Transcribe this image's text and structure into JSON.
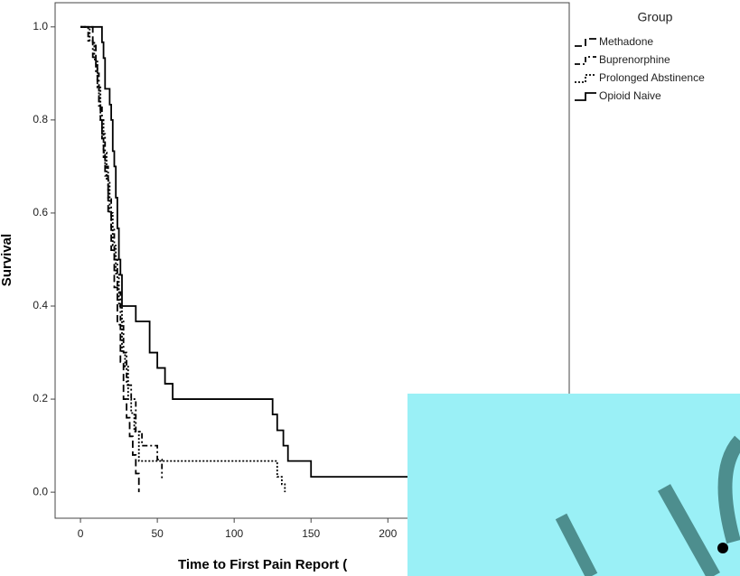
{
  "chart_data": {
    "type": "step",
    "x_label": "Time to First Pain Report (",
    "y_label": "Survival",
    "legend_title": "Group",
    "xlim": [
      -16.5,
      318
    ],
    "ylim": [
      -0.056,
      1.052
    ],
    "xticks": [
      0,
      50,
      100,
      150,
      200
    ],
    "yticks": [
      {
        "value": 0,
        "label": "0.0"
      },
      0.2,
      0.4,
      0.6,
      0.8,
      {
        "value": 1,
        "label": "1.0"
      }
    ],
    "series": [
      {
        "name": "Methadone",
        "color": "#000000",
        "dash": "8,4",
        "x": [
          0,
          8,
          10,
          11,
          12,
          13,
          14,
          15,
          16,
          18,
          20,
          22,
          24,
          26,
          28,
          30,
          32,
          34,
          36,
          38
        ],
        "values": [
          1,
          0.96,
          0.92,
          0.88,
          0.84,
          0.8,
          0.76,
          0.72,
          0.68,
          0.6,
          0.52,
          0.44,
          0.36,
          0.28,
          0.2,
          0.16,
          0.12,
          0.08,
          0.04,
          0
        ]
      },
      {
        "name": "Buprenorphine",
        "color": "#000000",
        "dash": "6,3,2,3",
        "x": [
          0,
          5,
          8,
          10,
          12,
          14,
          16,
          18,
          20,
          22,
          24,
          26,
          28,
          30,
          33,
          36,
          40,
          50,
          53
        ],
        "values": [
          1,
          0.97,
          0.93,
          0.9,
          0.83,
          0.77,
          0.7,
          0.63,
          0.57,
          0.5,
          0.43,
          0.37,
          0.3,
          0.23,
          0.2,
          0.13,
          0.1,
          0.07,
          0.03
        ]
      },
      {
        "name": "Prolonged Abstinence",
        "color": "#000000",
        "dash": "2,2",
        "x": [
          0,
          6,
          9,
          11,
          13,
          15,
          17,
          19,
          21,
          23,
          25,
          27,
          29,
          31,
          33,
          35,
          38,
          128,
          131,
          133
        ],
        "values": [
          1,
          0.97,
          0.93,
          0.87,
          0.8,
          0.73,
          0.67,
          0.6,
          0.53,
          0.47,
          0.4,
          0.3,
          0.27,
          0.2,
          0.17,
          0.13,
          0.067,
          0.033,
          0.017,
          0
        ]
      },
      {
        "name": "Opioid Naive",
        "color": "#000000",
        "dash": "none",
        "x": [
          0,
          14,
          15,
          16,
          19,
          20,
          21,
          22,
          23,
          24,
          25,
          26,
          27,
          36,
          45,
          50,
          55,
          60,
          125,
          128,
          132,
          135,
          150,
          250
        ],
        "values": [
          1,
          0.967,
          0.933,
          0.867,
          0.833,
          0.8,
          0.733,
          0.7,
          0.633,
          0.567,
          0.5,
          0.467,
          0.4,
          0.367,
          0.3,
          0.267,
          0.233,
          0.2,
          0.167,
          0.133,
          0.1,
          0.067,
          0.033,
          0.033
        ]
      }
    ]
  }
}
